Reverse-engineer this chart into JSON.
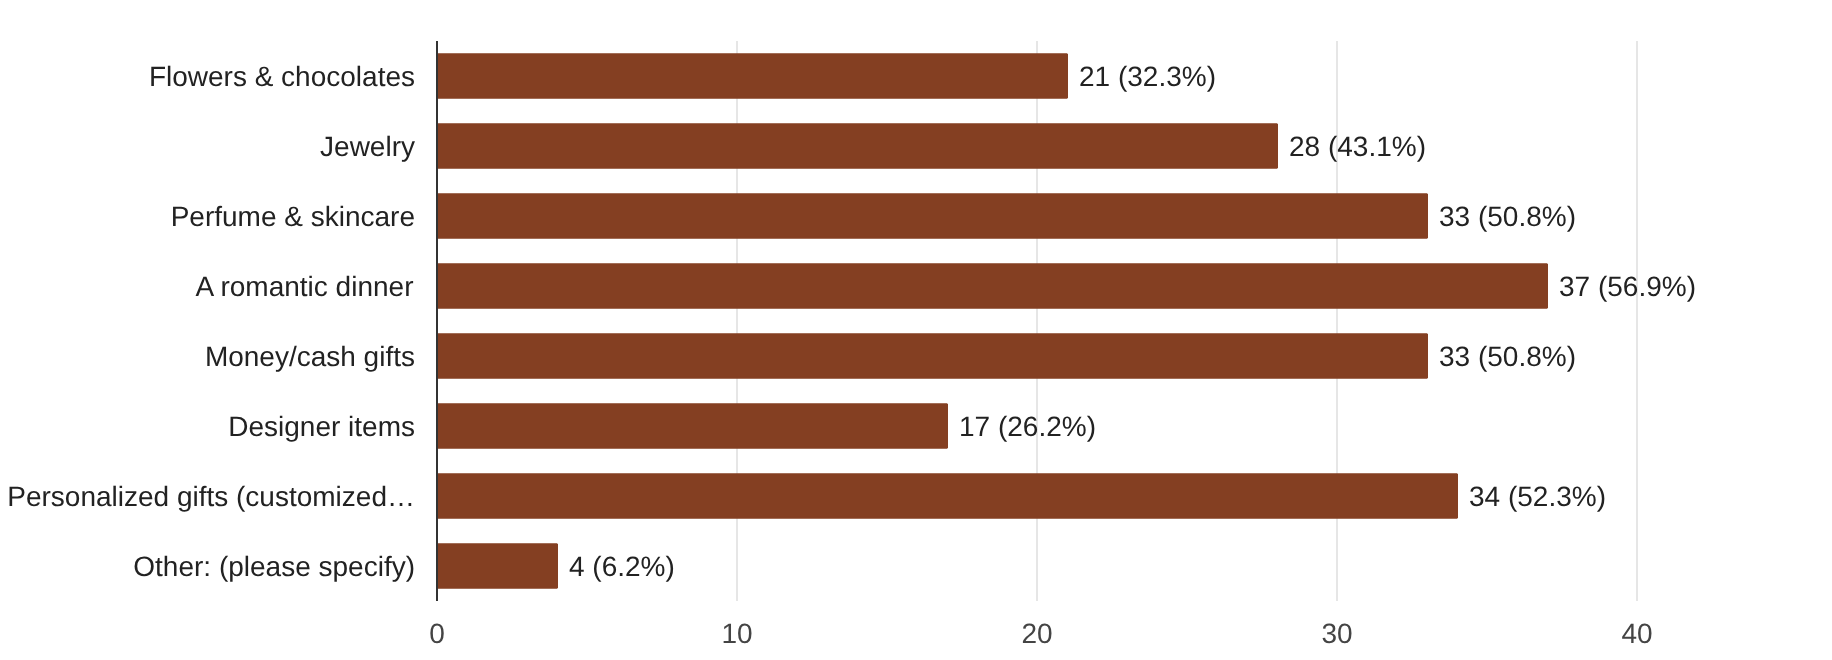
{
  "chart_data": {
    "type": "bar",
    "orientation": "horizontal",
    "categories": [
      "Flowers & chocolates",
      "Jewelry",
      "Perfume & skincare",
      "A romantic dinner",
      "Money/cash gifts",
      "Designer items",
      "Personalized gifts (customized…",
      "Other: (please specify)"
    ],
    "values": [
      21,
      28,
      33,
      37,
      33,
      17,
      34,
      4
    ],
    "value_labels": [
      "21 (32.3%)",
      "28 (43.1%)",
      "33 (50.8%)",
      "37 (56.9%)",
      "33 (50.8%)",
      "17 (26.2%)",
      "34 (52.3%)",
      "4 (6.2%)"
    ],
    "color": "#843f22",
    "xlim": [
      0,
      40
    ],
    "xticks": [
      0,
      10,
      20,
      30,
      40
    ],
    "grid": "x"
  }
}
